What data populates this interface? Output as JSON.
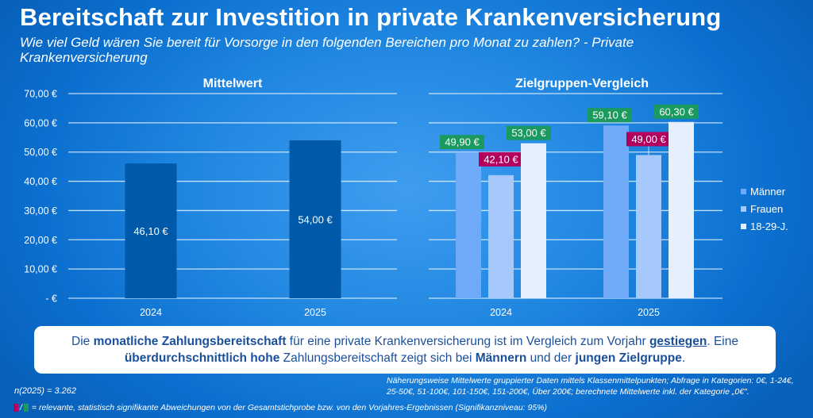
{
  "title": "Bereitschaft zur Investition in private Krankenversicherung",
  "subtitle": "Wie viel Geld wären Sie bereit für Vorsorge in den folgenden Bereichen pro Monat zu zahlen? - Private Krankenversicherung",
  "colors": {
    "mean_bar": "#005aa9",
    "maenner": "#6eaaf7",
    "frauen": "#a6c8fa",
    "jung": "#e6effd",
    "sig_positive": "#1a9a5f",
    "sig_negative": "#b3005f",
    "summary_text": "#1a4f9c"
  },
  "chart_data": [
    {
      "type": "bar",
      "title": "Mittelwert",
      "categories": [
        "2024",
        "2025"
      ],
      "values": [
        46.1,
        54.0
      ],
      "value_labels": [
        "46,10 €",
        "54,00 €"
      ],
      "ylim": [
        0,
        70
      ],
      "yticks": [
        0,
        10,
        20,
        30,
        40,
        50,
        60,
        70
      ],
      "ytick_labels": [
        "-   €",
        "10,00 €",
        "20,00 €",
        "30,00 €",
        "40,00 €",
        "50,00 €",
        "60,00 €",
        "70,00 €"
      ],
      "xlabel": "",
      "ylabel": "",
      "grid": true
    },
    {
      "type": "bar",
      "title": "Zielgruppen-Vergleich",
      "categories": [
        "2024",
        "2025"
      ],
      "series": [
        {
          "name": "Männer",
          "values": [
            49.9,
            59.1
          ],
          "value_labels": [
            "49,90 €",
            "59,10 €"
          ],
          "significance": [
            "positive",
            "positive"
          ]
        },
        {
          "name": "Frauen",
          "values": [
            42.1,
            49.0
          ],
          "value_labels": [
            "42,10 €",
            "49,00 €"
          ],
          "significance": [
            "negative",
            "negative"
          ]
        },
        {
          "name": "18-29-J.",
          "values": [
            53.0,
            60.3
          ],
          "value_labels": [
            "53,00 €",
            "60,30 €"
          ],
          "significance": [
            "positive",
            "positive"
          ]
        }
      ],
      "ylim": [
        0,
        70
      ],
      "legend": "right",
      "grid": true
    }
  ],
  "summary": {
    "p1": "Die ",
    "b1": "monatliche Zahlungsbereitschaft",
    "p2": " für eine private Krankenversicherung ist im Vergleich zum Vorjahr ",
    "b2": "gestiegen",
    "p3": ". Eine ",
    "b3": "überdurchschnittlich hohe",
    "p4": " Zahlungsbereitschaft zeigt sich bei ",
    "b4": "Männern",
    "p5": " und der ",
    "b5": "jungen Zielgruppe",
    "p6": "."
  },
  "footer": {
    "sample": "n(2025) = 3.262",
    "method": "Näherungsweise Mittelwerte gruppierter Daten mittels Klassenmittelpunkten; Abfrage in Kategorien: 0€, 1-24€, 25-50€, 51-100€, 101-150€, 151-200€, Über 200€; berechnete Mittelwerte inkl. der Kategorie „0€\".",
    "sig_sep": "/",
    "significance_note": "= relevante, statistisch signifikante Abweichungen von der Gesamtstichprobe bzw. von den Vorjahres-Ergebnissen (Signifikanzniveau: 95%)"
  }
}
